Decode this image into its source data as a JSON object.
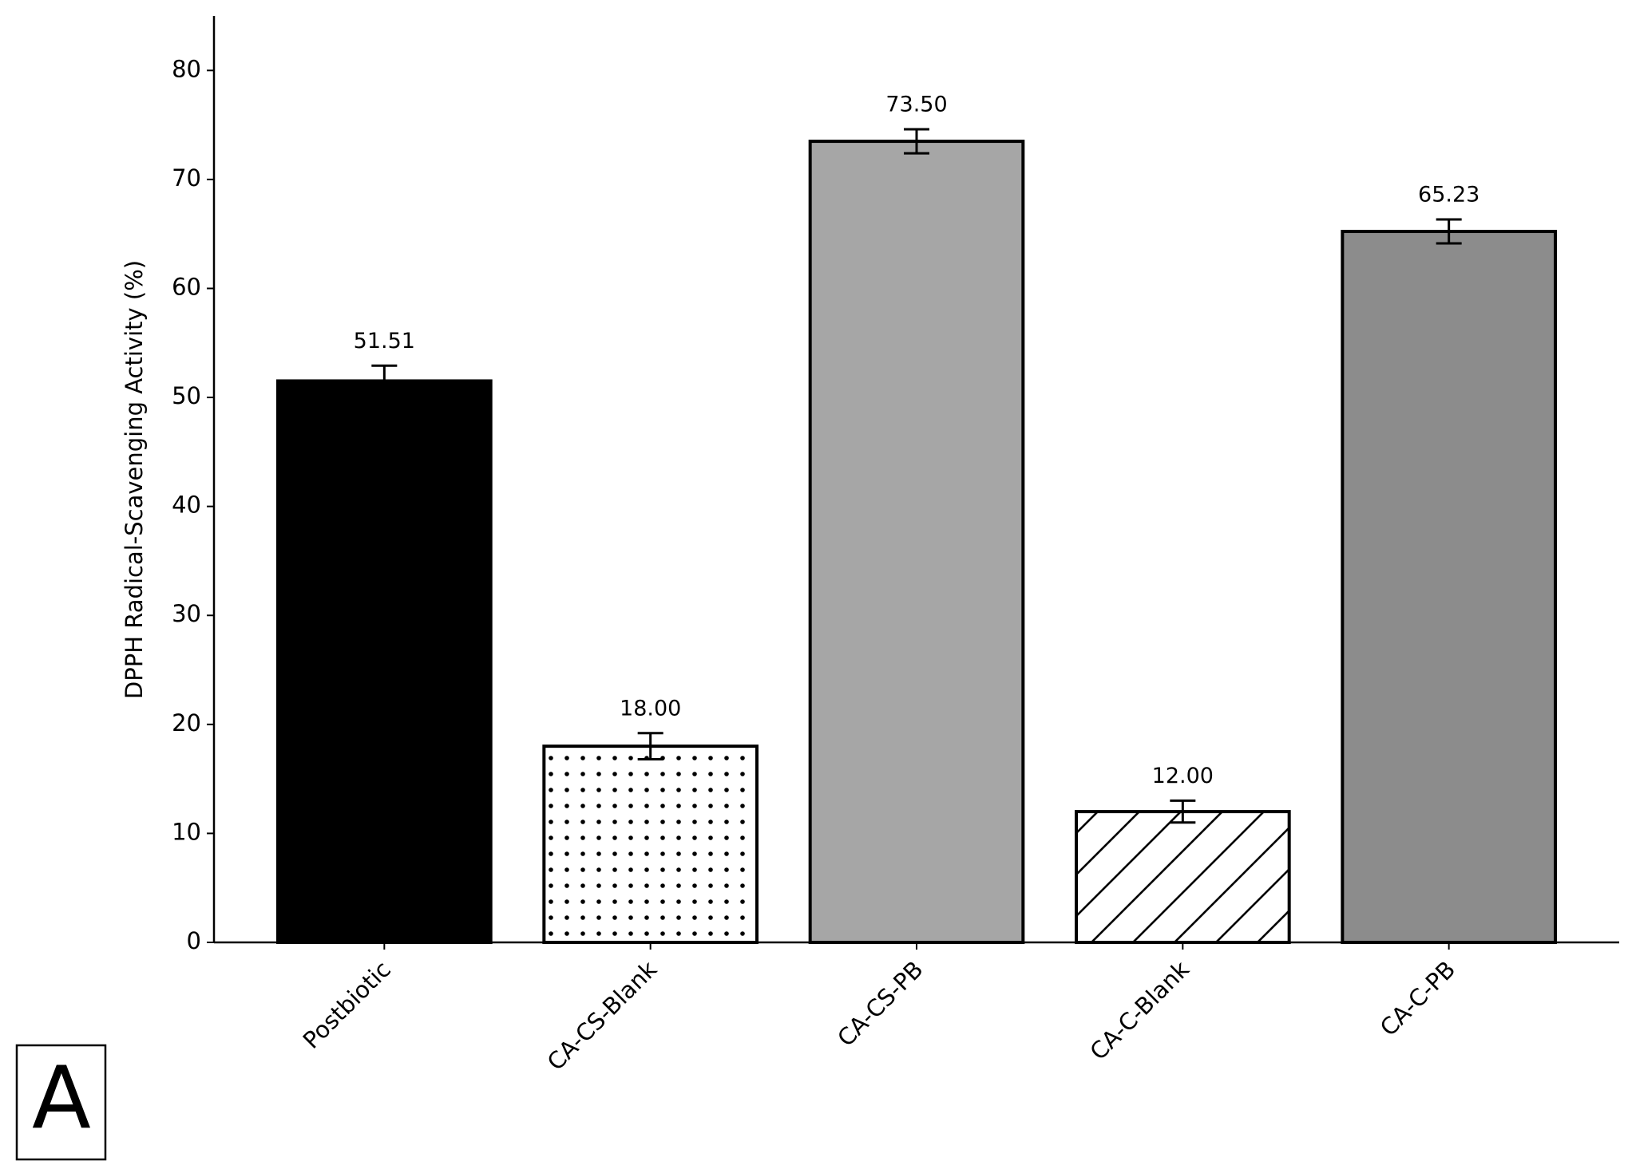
{
  "chart_data": {
    "type": "bar",
    "y_label": "DPPH Radical-Scavenging Activity (%)",
    "categories": [
      "Postbiotic",
      "CA-CS-Blank",
      "CA-CS-PB",
      "CA-C-Blank",
      "CA-C-PB"
    ],
    "values": [
      51.51,
      18.0,
      73.5,
      12.0,
      65.23
    ],
    "value_labels": [
      "51.51",
      "18.00",
      "73.50",
      "12.00",
      "65.23"
    ],
    "errors": [
      1.4,
      1.2,
      1.1,
      1.0,
      1.1
    ],
    "colors": [
      "#000000",
      "#ffffff",
      "#a6a6a6",
      "#ffffff",
      "#8c8c8c"
    ],
    "hatches": [
      null,
      "dots",
      null,
      "diagonal",
      null
    ],
    "ylim": [
      0,
      85
    ],
    "yticks": [
      0,
      10,
      20,
      30,
      40,
      50,
      60,
      70,
      80
    ],
    "grid": false,
    "panel_label": "A"
  }
}
